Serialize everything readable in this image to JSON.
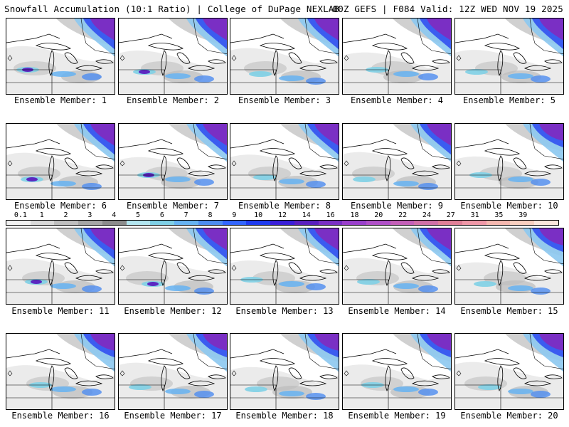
{
  "header": {
    "title": "Snowfall Accumulation (10:1 Ratio) | College of DuPage NEXLAB",
    "run_info": "00Z GEFS | F084 Valid: 12Z WED NOV 19 2025"
  },
  "members": [
    {
      "label": "Ensemble Member: 1"
    },
    {
      "label": "Ensemble Member: 2"
    },
    {
      "label": "Ensemble Member: 3"
    },
    {
      "label": "Ensemble Member: 4"
    },
    {
      "label": "Ensemble Member: 5"
    },
    {
      "label": "Ensemble Member: 6"
    },
    {
      "label": "Ensemble Member: 7"
    },
    {
      "label": "Ensemble Member: 8"
    },
    {
      "label": "Ensemble Member: 9"
    },
    {
      "label": "Ensemble Member: 10"
    },
    {
      "label": "Ensemble Member: 11"
    },
    {
      "label": "Ensemble Member: 12"
    },
    {
      "label": "Ensemble Member: 13"
    },
    {
      "label": "Ensemble Member: 14"
    },
    {
      "label": "Ensemble Member: 15"
    },
    {
      "label": "Ensemble Member: 16"
    },
    {
      "label": "Ensemble Member: 17"
    },
    {
      "label": "Ensemble Member: 18"
    },
    {
      "label": "Ensemble Member: 19"
    },
    {
      "label": "Ensemble Member: 20"
    }
  ],
  "colorbar": {
    "labels": [
      "0.1",
      "1",
      "2",
      "3",
      "4",
      "5",
      "6",
      "7",
      "8",
      "9",
      "10",
      "12",
      "14",
      "16",
      "18",
      "20",
      "22",
      "24",
      "27",
      "31",
      "35",
      "39"
    ],
    "colors": [
      "#f2f2f2",
      "#d9d9d9",
      "#bfbfbf",
      "#a6a6a6",
      "#8c8c8c",
      "#b3e6f0",
      "#7fd0e6",
      "#66b3f2",
      "#4d8cf0",
      "#3366ff",
      "#1f3cf0",
      "#3a1fd9",
      "#5a1fbf",
      "#7a2fc4",
      "#9a40cc",
      "#b050c8",
      "#c460b8",
      "#d070a8",
      "#e08098",
      "#ef98a8",
      "#f5b8b0",
      "#f8d0c0",
      "#fbe6dc"
    ]
  }
}
